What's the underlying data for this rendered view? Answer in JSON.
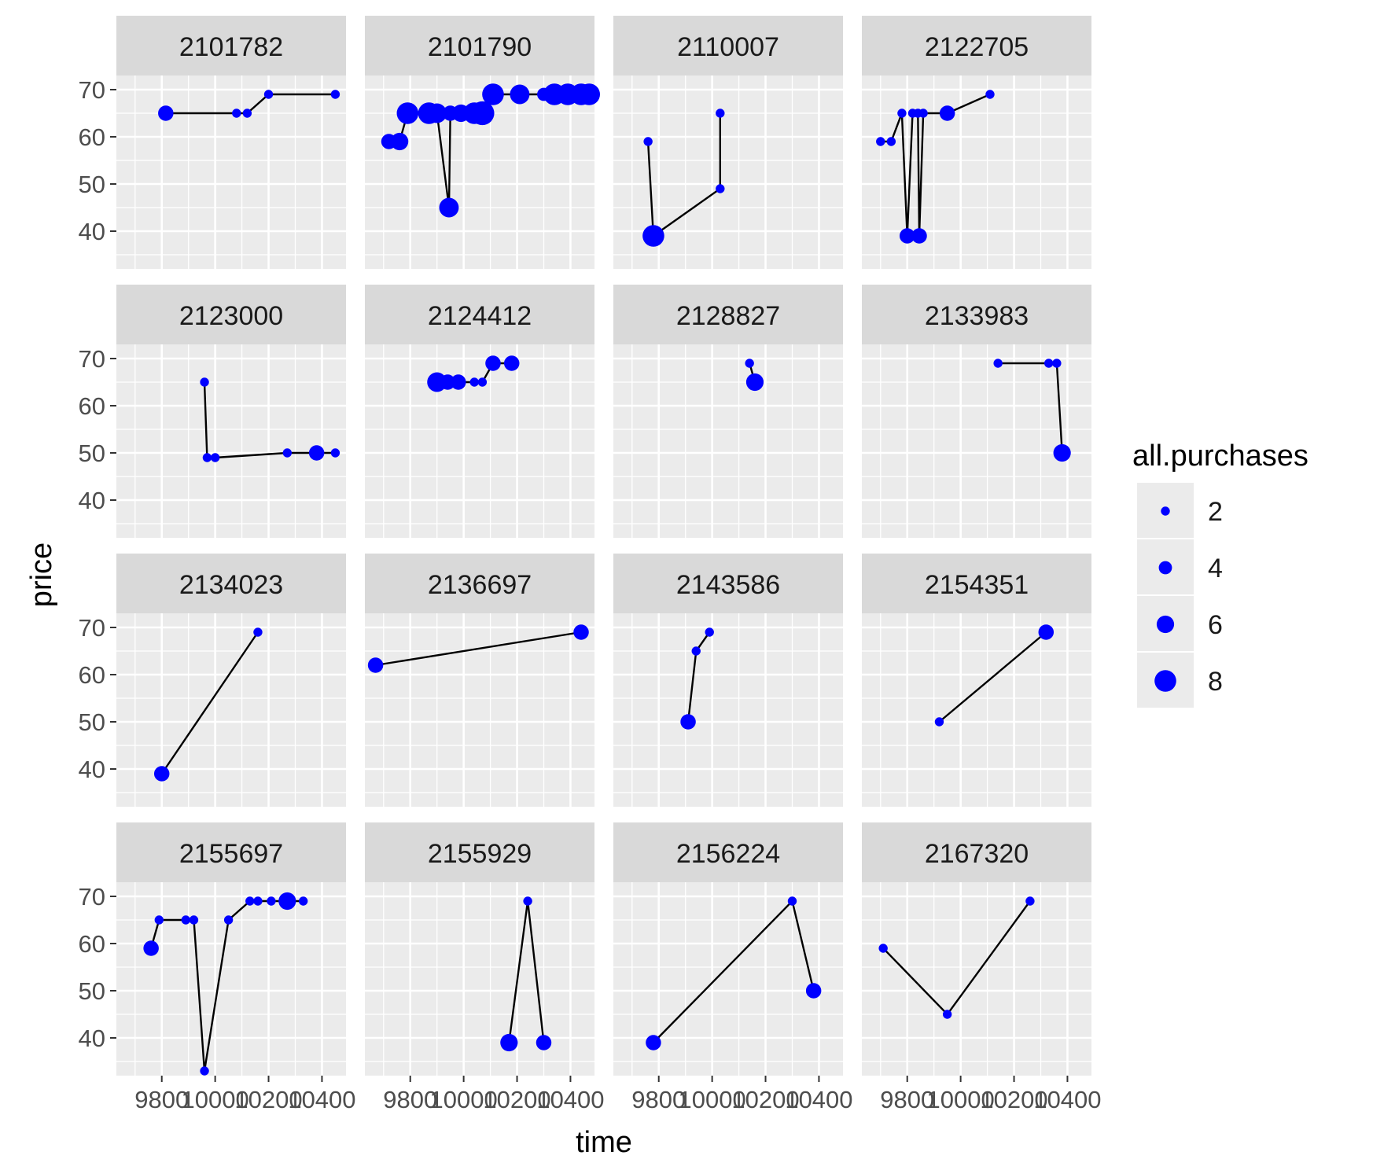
{
  "chart_data": {
    "type": "scatter",
    "subtype": "faceted-line-and-point",
    "xlabel": "time",
    "ylabel": "price",
    "x_ticks": [
      9800,
      10000,
      10200,
      10400
    ],
    "y_ticks": [
      40,
      50,
      60,
      70
    ],
    "xlim": [
      9630,
      10490
    ],
    "ylim": [
      32,
      73
    ],
    "grid": true,
    "colors": {
      "point": "#0000ff",
      "line": "#000000",
      "panel_bg": "#ebebeb",
      "strip_bg": "#d9d9d9",
      "grid": "#ffffff"
    },
    "size_legend": {
      "title": "all.purchases",
      "placement": "right",
      "sizes": [
        2,
        4,
        6,
        8
      ]
    },
    "facets": [
      {
        "label": "2101782",
        "points": [
          [
            9815,
            65,
            5
          ],
          [
            10080,
            65,
            2
          ],
          [
            10120,
            65,
            2
          ],
          [
            10200,
            69,
            2
          ],
          [
            10450,
            69,
            2
          ]
        ]
      },
      {
        "label": "2101790",
        "points": [
          [
            9720,
            59,
            5
          ],
          [
            9760,
            59,
            6
          ],
          [
            9790,
            65,
            8
          ],
          [
            9870,
            65,
            8
          ],
          [
            9900,
            65,
            7
          ],
          [
            9945,
            45,
            7
          ],
          [
            9950,
            65,
            5
          ],
          [
            9990,
            65,
            6
          ],
          [
            10040,
            65,
            8
          ],
          [
            10070,
            65,
            9
          ],
          [
            10110,
            69,
            8
          ],
          [
            10210,
            69,
            7
          ],
          [
            10300,
            69,
            4
          ],
          [
            10340,
            69,
            8
          ],
          [
            10390,
            69,
            8
          ],
          [
            10440,
            69,
            8
          ],
          [
            10470,
            69,
            8
          ]
        ]
      },
      {
        "label": "2110007",
        "points": [
          [
            9760,
            59,
            2
          ],
          [
            9780,
            39,
            8
          ],
          [
            10030,
            49,
            2
          ],
          [
            10030,
            65,
            2
          ]
        ]
      },
      {
        "label": "2122705",
        "points": [
          [
            9700,
            59,
            2
          ],
          [
            9740,
            59,
            2
          ],
          [
            9780,
            65,
            2
          ],
          [
            9800,
            39,
            5
          ],
          [
            9820,
            65,
            2
          ],
          [
            9840,
            65,
            2
          ],
          [
            9845,
            39,
            5
          ],
          [
            9860,
            65,
            2
          ],
          [
            9950,
            65,
            5
          ],
          [
            10110,
            69,
            2
          ]
        ]
      },
      {
        "label": "2123000",
        "points": [
          [
            9960,
            65,
            2
          ],
          [
            9970,
            49,
            2
          ],
          [
            10000,
            49,
            2
          ],
          [
            10270,
            50,
            2
          ],
          [
            10380,
            50,
            5
          ],
          [
            10450,
            50,
            2
          ]
        ]
      },
      {
        "label": "2124412",
        "points": [
          [
            9900,
            65,
            7
          ],
          [
            9940,
            65,
            5
          ],
          [
            9980,
            65,
            5
          ],
          [
            10040,
            65,
            2
          ],
          [
            10070,
            65,
            2
          ],
          [
            10110,
            69,
            5
          ],
          [
            10180,
            69,
            5
          ]
        ]
      },
      {
        "label": "2128827",
        "points": [
          [
            10140,
            69,
            2
          ],
          [
            10160,
            65,
            6
          ]
        ]
      },
      {
        "label": "2133983",
        "points": [
          [
            10140,
            69,
            2
          ],
          [
            10330,
            69,
            2
          ],
          [
            10360,
            69,
            2
          ],
          [
            10380,
            50,
            6
          ]
        ]
      },
      {
        "label": "2134023",
        "points": [
          [
            9800,
            39,
            5
          ],
          [
            10160,
            69,
            2
          ]
        ]
      },
      {
        "label": "2136697",
        "points": [
          [
            9670,
            62,
            5
          ],
          [
            10440,
            69,
            5
          ]
        ]
      },
      {
        "label": "2143586",
        "points": [
          [
            9910,
            50,
            5
          ],
          [
            9940,
            65,
            2
          ],
          [
            9990,
            69,
            2
          ]
        ]
      },
      {
        "label": "2154351",
        "points": [
          [
            9920,
            50,
            2
          ],
          [
            10320,
            69,
            5
          ]
        ]
      },
      {
        "label": "2155697",
        "points": [
          [
            9760,
            59,
            5
          ],
          [
            9790,
            65,
            2
          ],
          [
            9890,
            65,
            2
          ],
          [
            9920,
            65,
            2
          ],
          [
            9960,
            33,
            2
          ],
          [
            10050,
            65,
            2
          ],
          [
            10130,
            69,
            2
          ],
          [
            10160,
            69,
            2
          ],
          [
            10210,
            69,
            2
          ],
          [
            10270,
            69,
            6
          ],
          [
            10330,
            69,
            2
          ]
        ]
      },
      {
        "label": "2155929",
        "points": [
          [
            10170,
            39,
            6
          ],
          [
            10240,
            69,
            2
          ],
          [
            10300,
            39,
            5
          ]
        ]
      },
      {
        "label": "2156224",
        "points": [
          [
            9780,
            39,
            5
          ],
          [
            10300,
            69,
            2
          ],
          [
            10380,
            50,
            5
          ]
        ]
      },
      {
        "label": "2167320",
        "points": [
          [
            9710,
            59,
            2
          ],
          [
            9950,
            45,
            2
          ],
          [
            10260,
            69,
            2
          ]
        ]
      }
    ]
  }
}
